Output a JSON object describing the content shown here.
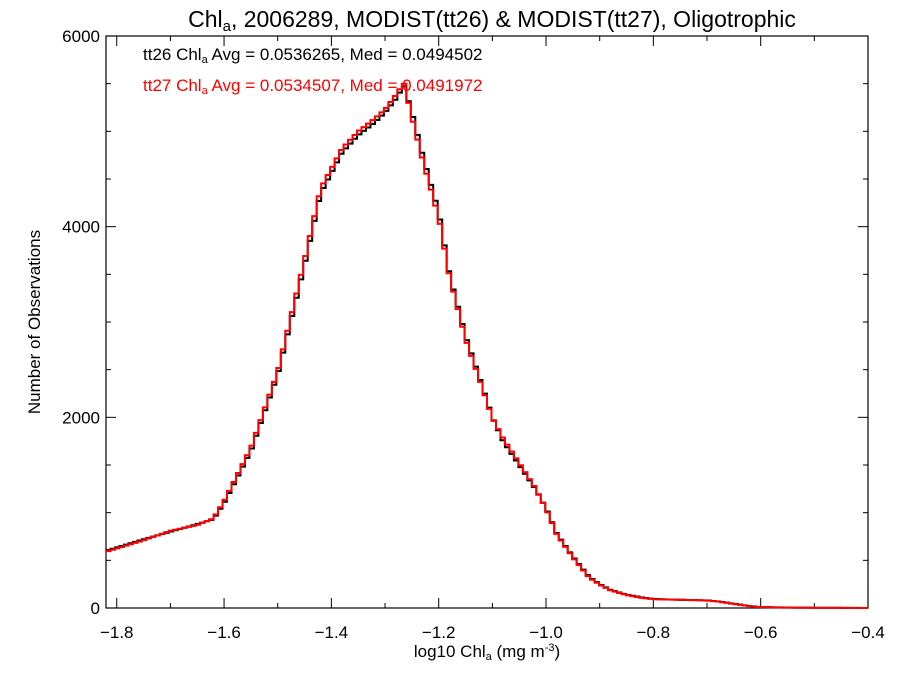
{
  "chart_data": {
    "type": "line",
    "title_parts": [
      "Chl",
      "a",
      ", 2006289, MODIST(tt26) & MODIST(tt27), Oligotrophic"
    ],
    "xlabel_parts": [
      "log10 Chl",
      "a",
      " (mg m",
      "-3",
      ")"
    ],
    "ylabel": "Number of Observations",
    "xlim": [
      -1.82,
      -0.4
    ],
    "ylim": [
      0,
      6000
    ],
    "grid": false,
    "x_ticks": [
      -1.8,
      -1.6,
      -1.4,
      -1.2,
      -1.0,
      -0.8,
      -0.6,
      -0.4
    ],
    "x_tick_labels": [
      "−1.8",
      "−1.6",
      "−1.4",
      "−1.2",
      "−1.0",
      "−0.8",
      "−0.6",
      "−0.4"
    ],
    "y_ticks": [
      0,
      2000,
      4000,
      6000
    ],
    "y_tick_labels": [
      "0",
      "2000",
      "4000",
      "6000"
    ],
    "series": [
      {
        "name": "tt26",
        "color": "#000000",
        "annotation_parts": [
          "tt26 Chl",
          "a",
          " Avg = 0.0536265, Med = 0.0494502"
        ],
        "x": [
          -1.82,
          -1.75,
          -1.7,
          -1.65,
          -1.62,
          -1.6,
          -1.55,
          -1.5,
          -1.45,
          -1.42,
          -1.38,
          -1.35,
          -1.32,
          -1.3,
          -1.28,
          -1.265,
          -1.25,
          -1.23,
          -1.2,
          -1.18,
          -1.15,
          -1.12,
          -1.1,
          -1.08,
          -1.05,
          -1.02,
          -1.0,
          -0.98,
          -0.95,
          -0.92,
          -0.9,
          -0.88,
          -0.85,
          -0.82,
          -0.8,
          -0.75,
          -0.7,
          -0.68,
          -0.65,
          -0.62,
          -0.6,
          -0.55,
          -0.5,
          -0.45,
          -0.4
        ],
        "values": [
          600,
          720,
          800,
          880,
          930,
          1100,
          1650,
          2450,
          3600,
          4350,
          4780,
          4960,
          5090,
          5200,
          5340,
          5480,
          5200,
          4750,
          4150,
          3500,
          2850,
          2350,
          2000,
          1750,
          1500,
          1250,
          1050,
          780,
          540,
          330,
          250,
          190,
          140,
          110,
          95,
          85,
          80,
          70,
          45,
          20,
          10,
          5,
          3,
          2,
          0
        ]
      },
      {
        "name": "tt27",
        "color": "#ff0000",
        "annotation_parts": [
          "tt27 Chl",
          "a",
          " Avg = 0.0534507, Med = 0.0491972"
        ],
        "x": [
          -1.82,
          -1.75,
          -1.7,
          -1.65,
          -1.62,
          -1.6,
          -1.55,
          -1.5,
          -1.45,
          -1.42,
          -1.38,
          -1.35,
          -1.32,
          -1.3,
          -1.28,
          -1.265,
          -1.25,
          -1.23,
          -1.2,
          -1.18,
          -1.15,
          -1.12,
          -1.1,
          -1.08,
          -1.05,
          -1.02,
          -1.0,
          -0.98,
          -0.95,
          -0.92,
          -0.9,
          -0.88,
          -0.85,
          -0.82,
          -0.8,
          -0.75,
          -0.7,
          -0.68,
          -0.65,
          -0.62,
          -0.6,
          -0.55,
          -0.5,
          -0.45,
          -0.4
        ],
        "values": [
          590,
          710,
          810,
          870,
          940,
          1120,
          1680,
          2480,
          3650,
          4400,
          4820,
          5000,
          5130,
          5230,
          5380,
          5510,
          5150,
          4700,
          4100,
          3480,
          2820,
          2330,
          1990,
          1780,
          1520,
          1260,
          1040,
          770,
          530,
          320,
          245,
          185,
          135,
          105,
          92,
          88,
          78,
          68,
          42,
          18,
          9,
          4,
          2,
          1,
          0
        ]
      }
    ]
  }
}
